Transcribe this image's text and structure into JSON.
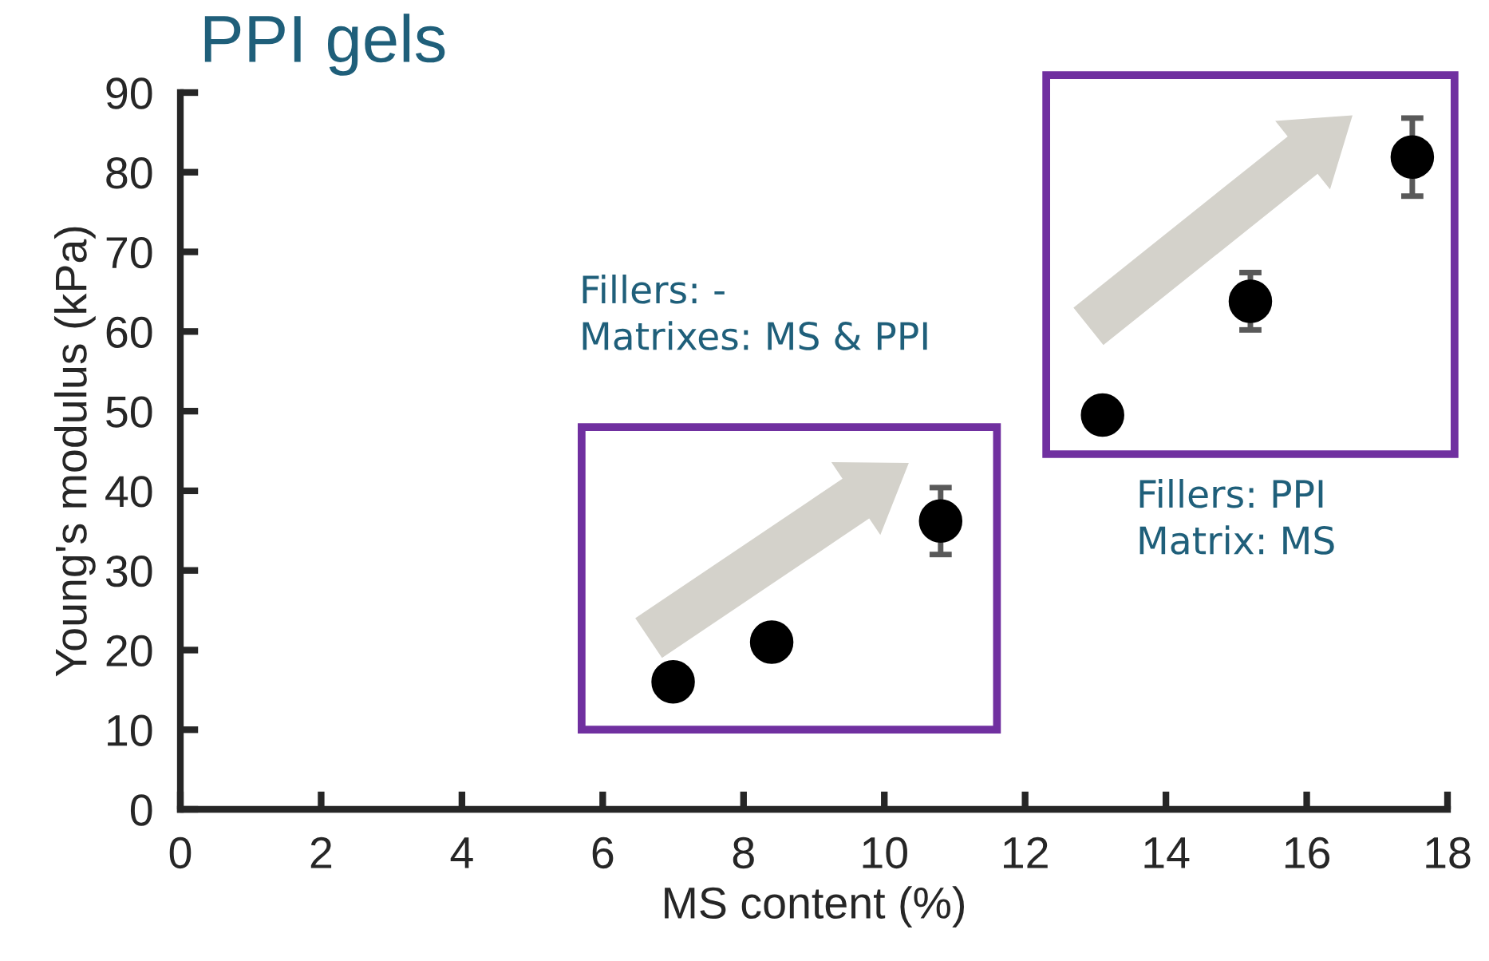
{
  "chart_data": {
    "type": "scatter",
    "title": "PPI gels",
    "xlabel": "MS content (%)",
    "ylabel": "Young's modulus (kPa)",
    "x": [
      7.0,
      8.4,
      10.8,
      13.1,
      15.2,
      17.5
    ],
    "values": [
      16.0,
      21.0,
      36.2,
      49.5,
      63.8,
      81.9
    ],
    "errors": [
      null,
      null,
      4.2,
      null,
      3.6,
      4.9
    ],
    "color": "#000000",
    "marker": "circle",
    "xlim": [
      0,
      18
    ],
    "xticks": [
      0,
      2,
      4,
      6,
      8,
      10,
      12,
      14,
      16,
      18
    ],
    "ylim": [
      0,
      90
    ],
    "yticks": [
      0,
      10,
      20,
      30,
      40,
      50,
      60,
      70,
      80,
      90
    ],
    "grid": false,
    "legend": false,
    "annotations": [
      "Fillers: -\nMatrixes: MS & PPI",
      "Fillers: PPI\nMatrix: MS"
    ]
  }
}
